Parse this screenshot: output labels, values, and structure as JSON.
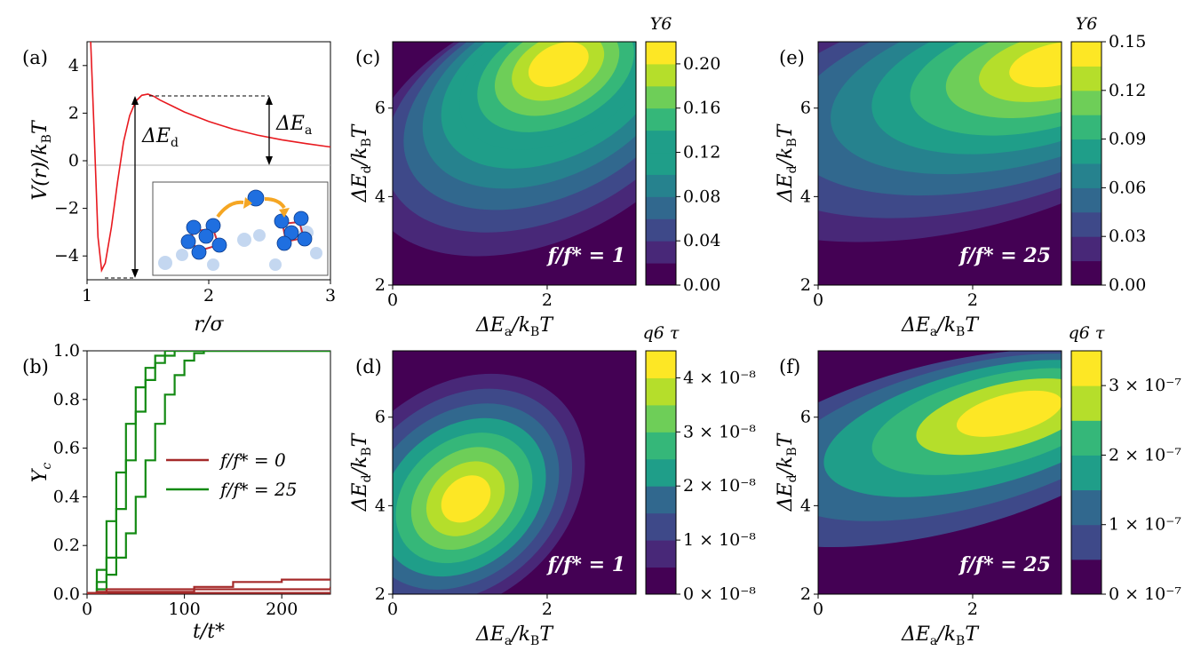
{
  "figure": {
    "panel_labels": [
      "(a)",
      "(b)",
      "(c)",
      "(d)",
      "(e)",
      "(f)"
    ]
  },
  "colors": {
    "potential": "#e8191f",
    "f0": "#a52a2a",
    "f25": "#138a13",
    "viridis": [
      "#440154",
      "#482878",
      "#3e4989",
      "#31688e",
      "#26828e",
      "#1f9e89",
      "#35b779",
      "#6ece58",
      "#b5de2b",
      "#fde725"
    ]
  },
  "chart_data": [
    {
      "id": "a",
      "type": "line",
      "xlabel": "r/σ",
      "ylabel": "V(r)/k_B T",
      "xlim": [
        1,
        3
      ],
      "ylim": [
        -5,
        5
      ],
      "xticks": [
        "1",
        "2",
        "3"
      ],
      "yticks": [
        "−4",
        "−2",
        "0",
        "2",
        "4"
      ],
      "series": [
        {
          "name": "V(r)",
          "x": [
            1.03,
            1.06,
            1.09,
            1.12,
            1.15,
            1.2,
            1.25,
            1.3,
            1.35,
            1.4,
            1.45,
            1.5,
            1.55,
            1.6,
            1.7,
            1.8,
            2.0,
            2.2,
            2.4,
            2.6,
            2.8,
            3.0
          ],
          "y": [
            5.0,
            1.0,
            -3.2,
            -4.6,
            -4.3,
            -2.8,
            -0.9,
            0.8,
            1.9,
            2.5,
            2.75,
            2.8,
            2.7,
            2.55,
            2.3,
            2.05,
            1.65,
            1.33,
            1.08,
            0.88,
            0.72,
            0.58
          ]
        }
      ],
      "annotations": {
        "dEd": "ΔE_d",
        "dEa": "ΔE_a"
      },
      "dEd_span": [
        -4.6,
        2.8
      ],
      "dEa_span": [
        0,
        2.8
      ]
    },
    {
      "id": "b",
      "type": "line",
      "xlabel": "t/t*",
      "ylabel": "Y_c",
      "xlim": [
        0,
        250
      ],
      "ylim": [
        0,
        1
      ],
      "xticks": [
        "0",
        "100",
        "200"
      ],
      "yticks": [
        "0.0",
        "0.2",
        "0.4",
        "0.6",
        "0.8",
        "1.0"
      ],
      "legend": [
        "f/f* = 0",
        "f/f* = 25"
      ],
      "series": [
        {
          "name": "f/f* = 25 run 1",
          "color_key": "f25",
          "x": [
            0,
            10,
            20,
            30,
            40,
            50,
            60,
            70,
            80,
            85,
            90,
            100,
            250
          ],
          "y": [
            0,
            0.1,
            0.3,
            0.5,
            0.7,
            0.85,
            0.93,
            0.98,
            1.0,
            1.0,
            1.0,
            1.0,
            1.0
          ]
        },
        {
          "name": "f/f* = 25 run 2",
          "color_key": "f25",
          "x": [
            0,
            10,
            20,
            30,
            40,
            50,
            60,
            70,
            80,
            90,
            100,
            110,
            250
          ],
          "y": [
            0,
            0.05,
            0.15,
            0.35,
            0.55,
            0.75,
            0.88,
            0.95,
            0.98,
            1.0,
            1.0,
            1.0,
            1.0
          ]
        },
        {
          "name": "f/f* = 25 run 3",
          "color_key": "f25",
          "x": [
            0,
            10,
            20,
            30,
            40,
            50,
            60,
            70,
            80,
            90,
            100,
            110,
            120,
            250
          ],
          "y": [
            0,
            0.02,
            0.08,
            0.15,
            0.25,
            0.4,
            0.55,
            0.7,
            0.82,
            0.9,
            0.96,
            0.99,
            1.0,
            1.0
          ]
        },
        {
          "name": "f/f* = 0 run 1",
          "color_key": "f0",
          "x": [
            0,
            10,
            100,
            110,
            150,
            200,
            250
          ],
          "y": [
            0,
            0.01,
            0.01,
            0.03,
            0.05,
            0.06,
            0.06
          ]
        },
        {
          "name": "f/f* = 0 run 2",
          "color_key": "f0",
          "x": [
            0,
            20,
            150,
            250
          ],
          "y": [
            0,
            0.02,
            0.02,
            0.03
          ]
        },
        {
          "name": "f/f* = 0 run 3",
          "color_key": "f0",
          "x": [
            0,
            250
          ],
          "y": [
            0.005,
            0.005
          ]
        }
      ]
    },
    {
      "id": "c",
      "type": "heatmap",
      "xlabel": "ΔE_a/k_B T",
      "ylabel": "ΔE_d/k_B T",
      "xlim": [
        0,
        3.15
      ],
      "ylim": [
        2,
        7.5
      ],
      "xticks": [
        "0",
        "2"
      ],
      "yticks": [
        "2",
        "4",
        "6"
      ],
      "annotation": "f/f* = 1",
      "colorbar_label": "Y_6",
      "colorbar_ticks": [
        "0.00",
        "0.04",
        "0.08",
        "0.12",
        "0.16",
        "0.20"
      ],
      "levels": [
        0,
        0.02,
        0.04,
        0.06,
        0.08,
        0.1,
        0.12,
        0.14,
        0.16,
        0.18,
        0.2,
        0.22
      ],
      "peak": {
        "x": 2.15,
        "y": 7.0,
        "value": 0.22
      }
    },
    {
      "id": "d",
      "type": "heatmap",
      "xlabel": "ΔE_a/k_B T",
      "ylabel": "ΔE_d/k_B T",
      "xlim": [
        0,
        3.15
      ],
      "ylim": [
        2,
        7.5
      ],
      "xticks": [
        "0",
        "2"
      ],
      "yticks": [
        "2",
        "4",
        "6"
      ],
      "annotation": "f/f* = 1",
      "colorbar_label": "q_6 τ",
      "colorbar_ticks": [
        "0 × 10⁻⁸",
        "1 × 10⁻⁸",
        "2 × 10⁻⁸",
        "3 × 10⁻⁸",
        "4 × 10⁻⁸"
      ],
      "levels": [
        0,
        0.5,
        1,
        1.5,
        2,
        2.5,
        3,
        3.5,
        4,
        4.5
      ],
      "peak": {
        "x": 0.95,
        "y": 4.15,
        "value": 4.5e-08
      }
    },
    {
      "id": "e",
      "type": "heatmap",
      "xlabel": "ΔE_a/k_B T",
      "ylabel": "ΔE_d/k_B T",
      "xlim": [
        0,
        3.15
      ],
      "ylim": [
        2,
        7.5
      ],
      "xticks": [
        "0",
        "2"
      ],
      "yticks": [
        "2",
        "4",
        "6"
      ],
      "annotation": "f/f* = 25",
      "colorbar_label": "Y_6",
      "colorbar_ticks": [
        "0.00",
        "0.03",
        "0.06",
        "0.09",
        "0.12",
        "0.15"
      ],
      "levels": [
        0,
        0.015,
        0.03,
        0.045,
        0.06,
        0.075,
        0.09,
        0.105,
        0.12,
        0.135,
        0.15
      ],
      "peak": {
        "x": 3.1,
        "y": 7.0,
        "value": 0.15
      }
    },
    {
      "id": "f",
      "type": "heatmap",
      "xlabel": "ΔE_a/k_B T",
      "ylabel": "ΔE_d/k_B T",
      "xlim": [
        0,
        3.15
      ],
      "ylim": [
        2,
        7.5
      ],
      "xticks": [
        "0",
        "2"
      ],
      "yticks": [
        "2",
        "4",
        "6"
      ],
      "annotation": "f/f* = 25",
      "colorbar_label": "q_6 τ",
      "colorbar_ticks": [
        "0 × 10⁻⁷",
        "1 × 10⁻⁷",
        "2 × 10⁻⁷",
        "3 × 10⁻⁷"
      ],
      "levels": [
        0,
        0.5,
        1,
        1.5,
        2,
        2.5,
        3,
        3.5
      ],
      "peak": {
        "x": 2.5,
        "y": 6.1,
        "value": 3.6e-07
      }
    }
  ]
}
